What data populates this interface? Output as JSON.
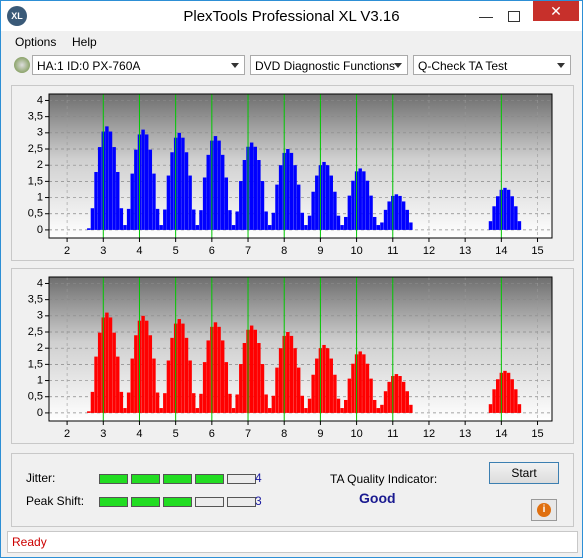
{
  "window": {
    "title": "PlexTools Professional XL V3.16"
  },
  "menu": [
    "Options",
    "Help"
  ],
  "toolbar": {
    "drive": "HA:1 ID:0  PX-760A",
    "functions": "DVD Diagnostic Functions",
    "test": "Q-Check TA Test"
  },
  "chart_data": [
    {
      "type": "bar",
      "color": "#0000ff",
      "xlim": [
        1.5,
        15.4
      ],
      "ylim": [
        -0.25,
        4.2
      ],
      "xticks": [
        2,
        3,
        4,
        5,
        6,
        7,
        8,
        9,
        10,
        11,
        12,
        13,
        14,
        15
      ],
      "yticks": [
        0,
        {
          "value": 0.5,
          "label": "0,5"
        },
        1,
        {
          "value": 1.5,
          "label": "1,5"
        },
        2,
        {
          "value": 2.5,
          "label": "2,5"
        },
        3,
        {
          "value": 3.5,
          "label": "3,5"
        },
        4
      ],
      "markers": [
        3,
        4,
        5,
        6,
        7,
        8,
        9,
        10,
        11,
        14
      ],
      "marker_color": "#00c800",
      "grid": true,
      "x": [
        2.6,
        2.7,
        2.8,
        2.9,
        3.0,
        3.1,
        3.2,
        3.3,
        3.4,
        3.5,
        3.6,
        3.7,
        3.8,
        3.9,
        4.0,
        4.1,
        4.2,
        4.3,
        4.4,
        4.5,
        4.6,
        4.7,
        4.8,
        4.9,
        5.0,
        5.1,
        5.2,
        5.3,
        5.4,
        5.5,
        5.6,
        5.7,
        5.8,
        5.9,
        6.0,
        6.1,
        6.2,
        6.3,
        6.4,
        6.5,
        6.6,
        6.7,
        6.8,
        6.9,
        7.0,
        7.1,
        7.2,
        7.3,
        7.4,
        7.5,
        7.6,
        7.7,
        7.8,
        7.9,
        8.0,
        8.1,
        8.2,
        8.3,
        8.4,
        8.5,
        8.6,
        8.7,
        8.8,
        8.9,
        9.0,
        9.1,
        9.2,
        9.3,
        9.4,
        9.5,
        9.6,
        9.7,
        9.8,
        9.9,
        10.0,
        10.1,
        10.2,
        10.3,
        10.4,
        10.5,
        10.6,
        10.7,
        10.8,
        10.9,
        11.0,
        11.1,
        11.2,
        11.3,
        11.4,
        11.5,
        11.6,
        11.7,
        11.8,
        11.9,
        12.0,
        12.1,
        12.2,
        12.3,
        12.4,
        12.5,
        12.6,
        12.7,
        12.8,
        12.9,
        13.0,
        13.1,
        13.2,
        13.3,
        13.4,
        13.5,
        13.6,
        13.7,
        13.8,
        13.9,
        14.0,
        14.1,
        14.2,
        14.3,
        14.4,
        14.5
      ],
      "values": [
        0.05,
        0.67,
        1.79,
        2.56,
        3.04,
        3.2,
        3.04,
        2.56,
        1.79,
        0.67,
        0.15,
        0.65,
        1.74,
        2.48,
        2.95,
        3.1,
        2.95,
        2.48,
        1.74,
        0.65,
        0.15,
        0.63,
        1.68,
        2.4,
        2.85,
        3,
        2.85,
        2.4,
        1.68,
        0.63,
        0.15,
        0.61,
        1.62,
        2.32,
        2.76,
        2.9,
        2.76,
        2.32,
        1.62,
        0.61,
        0.15,
        0.57,
        1.51,
        2.16,
        2.57,
        2.7,
        2.57,
        2.16,
        1.51,
        0.57,
        0.15,
        0.53,
        1.4,
        2,
        2.38,
        2.5,
        2.38,
        2,
        1.4,
        0.53,
        0.15,
        0.44,
        1.18,
        1.68,
        2,
        2.1,
        2,
        1.68,
        1.18,
        0.44,
        0.15,
        0.4,
        1.06,
        1.52,
        1.81,
        1.9,
        1.81,
        1.52,
        1.06,
        0.4,
        0.15,
        0.23,
        0.62,
        0.88,
        1.05,
        1.1,
        1.05,
        0.88,
        0.62,
        0.23,
        0,
        0,
        0,
        0,
        0,
        0,
        0,
        0,
        0,
        0,
        0,
        0,
        0,
        0,
        0,
        0,
        0,
        0,
        0,
        0,
        0,
        0.27,
        0.73,
        1.04,
        1.24,
        1.3,
        1.24,
        1.04,
        0.73,
        0.27
      ]
    },
    {
      "type": "bar",
      "color": "#ff0000",
      "xlim": [
        1.5,
        15.4
      ],
      "ylim": [
        -0.25,
        4.2
      ],
      "xticks": [
        2,
        3,
        4,
        5,
        6,
        7,
        8,
        9,
        10,
        11,
        12,
        13,
        14,
        15
      ],
      "yticks": [
        0,
        {
          "value": 0.5,
          "label": "0,5"
        },
        1,
        {
          "value": 1.5,
          "label": "1,5"
        },
        2,
        {
          "value": 2.5,
          "label": "2,5"
        },
        3,
        {
          "value": 3.5,
          "label": "3,5"
        },
        4
      ],
      "markers": [
        3,
        4,
        5,
        6,
        7,
        8,
        9,
        10,
        11,
        14
      ],
      "marker_color": "#00c800",
      "grid": true,
      "x": [
        2.6,
        2.7,
        2.8,
        2.9,
        3.0,
        3.1,
        3.2,
        3.3,
        3.4,
        3.5,
        3.6,
        3.7,
        3.8,
        3.9,
        4.0,
        4.1,
        4.2,
        4.3,
        4.4,
        4.5,
        4.6,
        4.7,
        4.8,
        4.9,
        5.0,
        5.1,
        5.2,
        5.3,
        5.4,
        5.5,
        5.6,
        5.7,
        5.8,
        5.9,
        6.0,
        6.1,
        6.2,
        6.3,
        6.4,
        6.5,
        6.6,
        6.7,
        6.8,
        6.9,
        7.0,
        7.1,
        7.2,
        7.3,
        7.4,
        7.5,
        7.6,
        7.7,
        7.8,
        7.9,
        8.0,
        8.1,
        8.2,
        8.3,
        8.4,
        8.5,
        8.6,
        8.7,
        8.8,
        8.9,
        9.0,
        9.1,
        9.2,
        9.3,
        9.4,
        9.5,
        9.6,
        9.7,
        9.8,
        9.9,
        10.0,
        10.1,
        10.2,
        10.3,
        10.4,
        10.5,
        10.6,
        10.7,
        10.8,
        10.9,
        11.0,
        11.1,
        11.2,
        11.3,
        11.4,
        11.5,
        11.6,
        11.7,
        11.8,
        11.9,
        12.0,
        12.1,
        12.2,
        12.3,
        12.4,
        12.5,
        12.6,
        12.7,
        12.8,
        12.9,
        13.0,
        13.1,
        13.2,
        13.3,
        13.4,
        13.5,
        13.6,
        13.7,
        13.8,
        13.9,
        14.0,
        14.1,
        14.2,
        14.3,
        14.4,
        14.5
      ],
      "values": [
        0.05,
        0.65,
        1.74,
        2.48,
        2.95,
        3.1,
        2.95,
        2.48,
        1.74,
        0.65,
        0.15,
        0.63,
        1.68,
        2.4,
        2.85,
        3,
        2.85,
        2.4,
        1.68,
        0.63,
        0.15,
        0.61,
        1.62,
        2.32,
        2.76,
        2.9,
        2.76,
        2.32,
        1.62,
        0.61,
        0.15,
        0.59,
        1.57,
        2.24,
        2.66,
        2.8,
        2.66,
        2.24,
        1.57,
        0.59,
        0.15,
        0.57,
        1.51,
        2.16,
        2.57,
        2.7,
        2.57,
        2.16,
        1.51,
        0.57,
        0.15,
        0.53,
        1.4,
        2,
        2.38,
        2.5,
        2.38,
        2,
        1.4,
        0.53,
        0.15,
        0.44,
        1.18,
        1.68,
        2,
        2.1,
        2,
        1.68,
        1.18,
        0.44,
        0.15,
        0.4,
        1.06,
        1.52,
        1.81,
        1.9,
        1.81,
        1.52,
        1.06,
        0.4,
        0.15,
        0.25,
        0.67,
        0.96,
        1.14,
        1.2,
        1.14,
        0.96,
        0.67,
        0.25,
        0,
        0,
        0,
        0,
        0,
        0,
        0,
        0,
        0,
        0,
        0,
        0,
        0,
        0,
        0,
        0,
        0,
        0,
        0,
        0,
        0,
        0.27,
        0.73,
        1.04,
        1.24,
        1.3,
        1.24,
        1.04,
        0.73,
        0.27
      ]
    }
  ],
  "results": {
    "jitter_label": "Jitter:",
    "jitter": 4,
    "peak_shift_label": "Peak Shift:",
    "peak_shift": 3,
    "quality_label": "TA Quality Indicator:",
    "quality": "Good",
    "start": "Start"
  },
  "status": "Ready"
}
